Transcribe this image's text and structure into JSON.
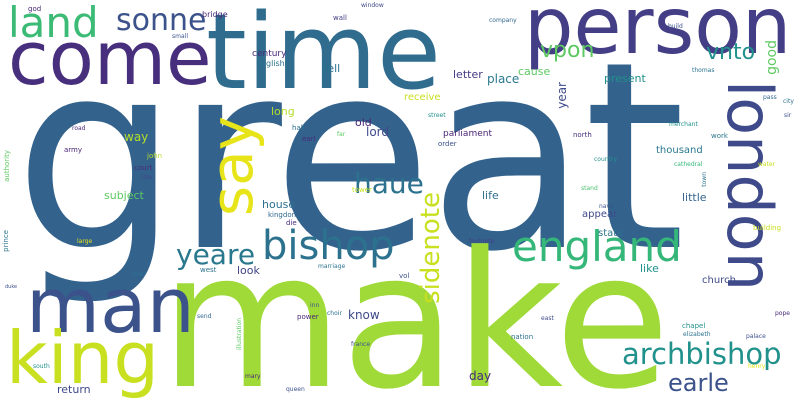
{
  "word_cloud": {
    "background": "#ffffff",
    "words": [
      {
        "text": "great"
      },
      {
        "text": "make"
      },
      {
        "text": "time"
      },
      {
        "text": "person"
      },
      {
        "text": "come"
      },
      {
        "text": "man"
      },
      {
        "text": "king"
      },
      {
        "text": "say"
      },
      {
        "text": "london"
      },
      {
        "text": "land"
      },
      {
        "text": "sonne"
      },
      {
        "text": "bishop"
      },
      {
        "text": "england"
      },
      {
        "text": "archbishop"
      },
      {
        "text": "yeare"
      },
      {
        "text": "haue"
      },
      {
        "text": "sidenote"
      },
      {
        "text": "earle"
      },
      {
        "text": "vpon"
      },
      {
        "text": "vnto"
      },
      {
        "text": "good"
      },
      {
        "text": "lord"
      },
      {
        "text": "old"
      },
      {
        "text": "year"
      },
      {
        "text": "place"
      },
      {
        "text": "present"
      },
      {
        "text": "cause"
      },
      {
        "text": "letter"
      },
      {
        "text": "tell"
      },
      {
        "text": "long"
      },
      {
        "text": "receive"
      },
      {
        "text": "way"
      },
      {
        "text": "subject"
      },
      {
        "text": "house"
      },
      {
        "text": "know"
      },
      {
        "text": "life"
      },
      {
        "text": "little"
      },
      {
        "text": "appear"
      },
      {
        "text": "state"
      },
      {
        "text": "like"
      },
      {
        "text": "look"
      },
      {
        "text": "return"
      },
      {
        "text": "day"
      },
      {
        "text": "thousand"
      },
      {
        "text": "church"
      },
      {
        "text": "parliament"
      },
      {
        "text": "century"
      },
      {
        "text": "english"
      },
      {
        "text": "bridge"
      },
      {
        "text": "god"
      },
      {
        "text": "wall"
      },
      {
        "text": "window"
      },
      {
        "text": "company"
      },
      {
        "text": "small"
      },
      {
        "text": "build"
      },
      {
        "text": "thomas"
      },
      {
        "text": "pass"
      },
      {
        "text": "city"
      },
      {
        "text": "sir"
      },
      {
        "text": "road"
      },
      {
        "text": "army"
      },
      {
        "text": "authority"
      },
      {
        "text": "john"
      },
      {
        "text": "court"
      },
      {
        "text": "law"
      },
      {
        "text": "hall"
      },
      {
        "text": "earl"
      },
      {
        "text": "far"
      },
      {
        "text": "street"
      },
      {
        "text": "order"
      },
      {
        "text": "north"
      },
      {
        "text": "merchant"
      },
      {
        "text": "work"
      },
      {
        "text": "water"
      },
      {
        "text": "cathedral"
      },
      {
        "text": "country"
      },
      {
        "text": "town"
      },
      {
        "text": "stand"
      },
      {
        "text": "building"
      },
      {
        "text": "prince"
      },
      {
        "text": "die"
      },
      {
        "text": "kingdom"
      },
      {
        "text": "tower"
      },
      {
        "text": "nave"
      },
      {
        "text": "footnote"
      },
      {
        "text": "large"
      },
      {
        "text": "river"
      },
      {
        "text": "west"
      },
      {
        "text": "marriage"
      },
      {
        "text": "vol"
      },
      {
        "text": "duke"
      },
      {
        "text": "inn"
      },
      {
        "text": "choir"
      },
      {
        "text": "power"
      },
      {
        "text": "send"
      },
      {
        "text": "illustration"
      },
      {
        "text": "nation"
      },
      {
        "text": "east"
      },
      {
        "text": "chapel"
      },
      {
        "text": "elizabeth"
      },
      {
        "text": "palace"
      },
      {
        "text": "pope"
      },
      {
        "text": "france"
      },
      {
        "text": "south"
      },
      {
        "text": "mary"
      },
      {
        "text": "queen"
      },
      {
        "text": "henry"
      }
    ]
  }
}
